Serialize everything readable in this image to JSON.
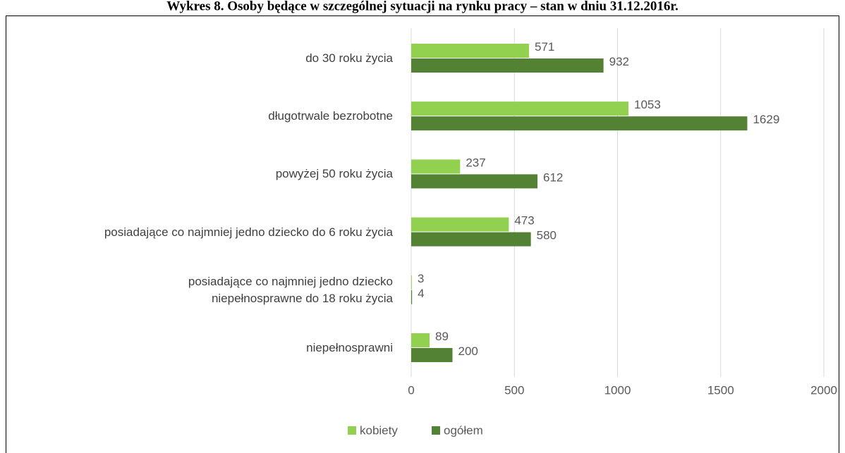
{
  "chart_data": {
    "type": "bar",
    "orientation": "horizontal",
    "title": "Wykres 8. Osoby będące w szczególnej sytuacji na rynku pracy – stan w dniu 31.12.2016r.",
    "categories": [
      "do 30 roku życia",
      "długotrwale bezrobotne",
      "powyżej 50 roku życia",
      "posiadające co najmniej jedno dziecko do 6 roku życia",
      "posiadające co najmniej jedno dziecko\nniepełnosprawne do 18 roku życia",
      "niepełnosprawni"
    ],
    "series": [
      {
        "name": "kobiety",
        "color": "#92d050",
        "values": [
          571,
          1053,
          237,
          473,
          3,
          89
        ]
      },
      {
        "name": "ogółem",
        "color": "#548235",
        "values": [
          932,
          1629,
          612,
          580,
          4,
          200
        ]
      }
    ],
    "xlim": [
      0,
      2000
    ],
    "xticks": [
      0,
      500,
      1000,
      1500,
      2000
    ],
    "grid": true,
    "legend": "bottom"
  }
}
